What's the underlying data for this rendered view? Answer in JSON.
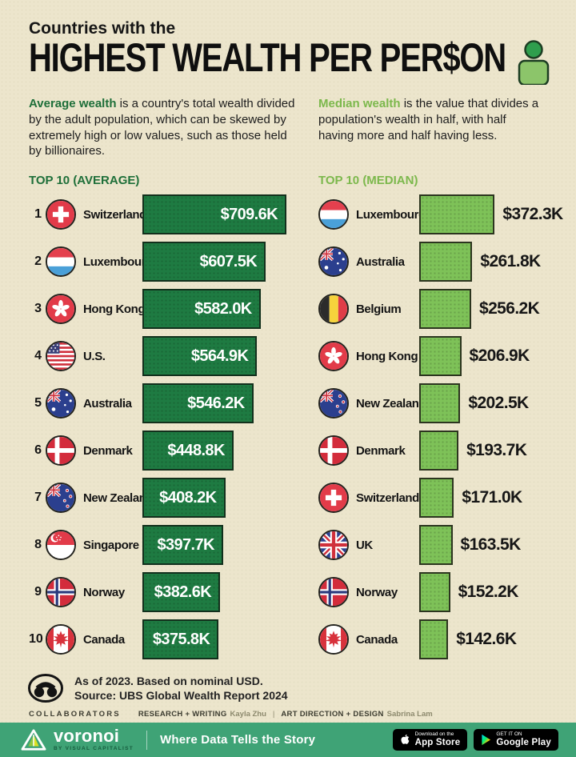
{
  "page": {
    "background": "#ece5cc",
    "accent_dark_green": "#1e7b42",
    "accent_light_green": "#7ec258",
    "footer_bar_green": "#3fa376"
  },
  "header": {
    "kicker": "Countries with the",
    "title": "HIGHEST WEALTH PER PER$ON"
  },
  "definitions": {
    "average_lead": "Average wealth",
    "average_rest": " is a country's total wealth divided by the adult population, which can be skewed by extremely high or low values, such as those held by billionaires.",
    "median_lead": "Median wealth",
    "median_rest": " is the value that divides a population's wealth in half, with half having more and half having less."
  },
  "chart_data": [
    {
      "type": "bar",
      "orientation": "horizontal",
      "title": "TOP 10 (AVERAGE)",
      "accent": "#1e6f39",
      "bar_color": "#1e7b42",
      "value_unit": "USD thousands per person",
      "value_label_position": "inside",
      "xlim": [
        0,
        709.6
      ],
      "rows": [
        {
          "rank": 1,
          "country": "Switzerland",
          "flag": "flag-switzerland",
          "value": 709.6,
          "label": "$709.6K"
        },
        {
          "rank": 2,
          "country": "Luxembourg",
          "flag": "flag-luxembourg",
          "value": 607.5,
          "label": "$607.5K"
        },
        {
          "rank": 3,
          "country": "Hong Kong",
          "flag": "flag-hong-kong",
          "value": 582.0,
          "label": "$582.0K"
        },
        {
          "rank": 4,
          "country": "U.S.",
          "flag": "flag-us",
          "value": 564.9,
          "label": "$564.9K"
        },
        {
          "rank": 5,
          "country": "Australia",
          "flag": "flag-australia",
          "value": 546.2,
          "label": "$546.2K"
        },
        {
          "rank": 6,
          "country": "Denmark",
          "flag": "flag-denmark",
          "value": 448.8,
          "label": "$448.8K"
        },
        {
          "rank": 7,
          "country": "New Zealand",
          "flag": "flag-new-zealand",
          "value": 408.2,
          "label": "$408.2K"
        },
        {
          "rank": 8,
          "country": "Singapore",
          "flag": "flag-singapore",
          "value": 397.7,
          "label": "$397.7K"
        },
        {
          "rank": 9,
          "country": "Norway",
          "flag": "flag-norway",
          "value": 382.6,
          "label": "$382.6K"
        },
        {
          "rank": 10,
          "country": "Canada",
          "flag": "flag-canada",
          "value": 375.8,
          "label": "$375.8K"
        }
      ]
    },
    {
      "type": "bar",
      "orientation": "horizontal",
      "title": "TOP 10 (MEDIAN)",
      "accent": "#7cb84c",
      "bar_color": "#7ec258",
      "value_unit": "USD thousands per person",
      "value_label_position": "outside",
      "xlim": [
        0,
        709.6
      ],
      "rows": [
        {
          "country": "Luxembourg",
          "flag": "flag-luxembourg",
          "value": 372.3,
          "label": "$372.3K"
        },
        {
          "country": "Australia",
          "flag": "flag-australia",
          "value": 261.8,
          "label": "$261.8K"
        },
        {
          "country": "Belgium",
          "flag": "flag-belgium",
          "value": 256.2,
          "label": "$256.2K"
        },
        {
          "country": "Hong Kong",
          "flag": "flag-hong-kong",
          "value": 206.9,
          "label": "$206.9K"
        },
        {
          "country": "New Zealand",
          "flag": "flag-new-zealand",
          "value": 202.5,
          "label": "$202.5K"
        },
        {
          "country": "Denmark",
          "flag": "flag-denmark",
          "value": 193.7,
          "label": "$193.7K"
        },
        {
          "country": "Switzerland",
          "flag": "flag-switzerland",
          "value": 171.0,
          "label": "$171.0K"
        },
        {
          "country": "UK",
          "flag": "flag-uk",
          "value": 163.5,
          "label": "$163.5K"
        },
        {
          "country": "Norway",
          "flag": "flag-norway",
          "value": 152.2,
          "label": "$152.2K"
        },
        {
          "country": "Canada",
          "flag": "flag-canada",
          "value": 142.6,
          "label": "$142.6K"
        }
      ]
    }
  ],
  "footer": {
    "note_line1": "As of 2023. Based on nominal USD.",
    "note_line2": "Source: UBS Global Wealth Report 2024",
    "collaborators_label": "COLLABORATORS",
    "credit1_role": "RESEARCH + WRITING",
    "credit1_name": "Kayla Zhu",
    "credit_separator": "|",
    "credit2_role": "ART DIRECTION + DESIGN",
    "credit2_name": "Sabrina Lam",
    "brand": "voronoi",
    "brand_sub": "BY VISUAL CAPITALIST",
    "tagline": "Where Data Tells the Story",
    "appstore_line1": "Download on the",
    "appstore_line2": "App Store",
    "googleplay_line1": "GET IT ON",
    "googleplay_line2": "Google Play"
  }
}
